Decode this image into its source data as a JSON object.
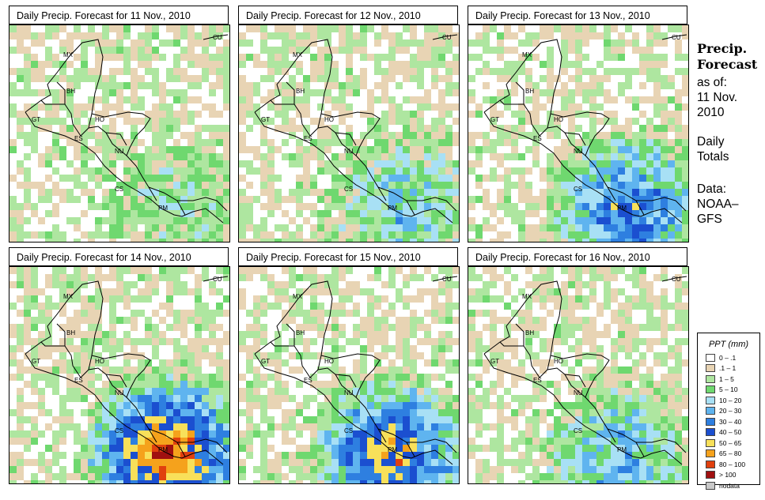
{
  "panels": [
    {
      "title": "Daily Precip. Forecast for  11 Nov., 2010",
      "intensity": 0.5
    },
    {
      "title": "Daily Precip. Forecast for  12 Nov., 2010",
      "intensity": 0.9
    },
    {
      "title": "Daily Precip. Forecast for  13 Nov., 2010",
      "intensity": 1.6
    },
    {
      "title": "Daily Precip. Forecast for  14 Nov., 2010",
      "intensity": 2.5
    },
    {
      "title": "Daily Precip. Forecast for  15 Nov., 2010",
      "intensity": 2.0
    },
    {
      "title": "Daily Precip. Forecast for  16 Nov., 2010",
      "intensity": 1.1
    }
  ],
  "country_labels": [
    "MX",
    "CU",
    "BH",
    "GT",
    "HO",
    "ES",
    "NU",
    "CS",
    "PM"
  ],
  "side_panel": {
    "title_line1": "Precip.",
    "title_line2": "Forecast",
    "asof_line1": "as of:",
    "asof_line2": "11 Nov.",
    "asof_line3": "2010",
    "totals_line1": "Daily",
    "totals_line2": "Totals",
    "data_line1": "Data:",
    "data_line2": "NOAA–",
    "data_line3": "GFS"
  },
  "legend": {
    "title": "PPT (mm)",
    "items": [
      {
        "label": "0 – .1",
        "color": "#ffffff"
      },
      {
        "label": ".1 – 1",
        "color": "#e8d4b4"
      },
      {
        "label": "1 – 5",
        "color": "#aee6a0"
      },
      {
        "label": "5 – 10",
        "color": "#6fd86f"
      },
      {
        "label": "10 – 20",
        "color": "#a8e0f5"
      },
      {
        "label": "20 – 30",
        "color": "#5fb4ef"
      },
      {
        "label": "30 – 40",
        "color": "#2e7fe0"
      },
      {
        "label": "40 – 50",
        "color": "#1b4fd0"
      },
      {
        "label": "50 – 65",
        "color": "#f8e05a"
      },
      {
        "label": "65 – 80",
        "color": "#f5a21c"
      },
      {
        "label": "80 – 100",
        "color": "#e0400e"
      },
      {
        "label": "> 100",
        "color": "#a01010"
      },
      {
        "label": "nodata",
        "color": "#c8c8c8"
      }
    ]
  }
}
